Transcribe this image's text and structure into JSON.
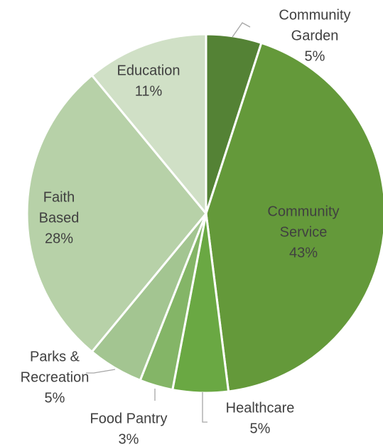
{
  "chart_data": {
    "type": "pie",
    "title": "",
    "slices": [
      {
        "label_lines": [
          "Community",
          "Garden"
        ],
        "value_label": "5%",
        "value": 5,
        "color": "#548235"
      },
      {
        "label_lines": [
          "Community",
          "Service"
        ],
        "value_label": "43%",
        "value": 43,
        "color": "#64993a"
      },
      {
        "label_lines": [
          "Healthcare"
        ],
        "value_label": "5%",
        "value": 5,
        "color": "#6aa843"
      },
      {
        "label_lines": [
          "Food Pantry"
        ],
        "value_label": "3%",
        "value": 3,
        "color": "#84b567"
      },
      {
        "label_lines": [
          "Parks &",
          "Recreation"
        ],
        "value_label": "5%",
        "value": 5,
        "color": "#a3c591"
      },
      {
        "label_lines": [
          "Faith",
          "Based"
        ],
        "value_label": "28%",
        "value": 28,
        "color": "#b7d1a8"
      },
      {
        "label_lines": [
          "Education"
        ],
        "value_label": "11%",
        "value": 11,
        "color": "#d0e0c6"
      }
    ],
    "start_angle": "12 o'clock",
    "direction": "clockwise",
    "legend": "none"
  }
}
